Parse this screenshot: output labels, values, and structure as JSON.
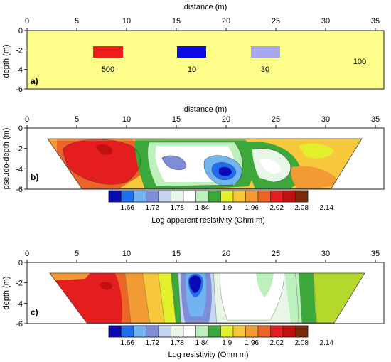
{
  "chart_data": [
    {
      "type": "heatmap",
      "panel_label": "a)",
      "xlabel": "distance (m)",
      "ylabel": "depth (m)",
      "xlim": [
        0,
        36
      ],
      "ylim": [
        -6,
        0
      ],
      "xticks": [
        "0",
        "5",
        "10",
        "15",
        "20",
        "25",
        "30",
        "35"
      ],
      "yticks": [
        "0",
        "-2",
        "-4",
        "-6"
      ],
      "background": {
        "resistivity": "100",
        "color": "#fdfd8a"
      },
      "blocks": [
        {
          "label": "500",
          "x": [
            6.7,
            9.6
          ],
          "y": [
            -2.5,
            -1.5
          ],
          "color": "#ee1c1c"
        },
        {
          "label": "10",
          "x": [
            15.0,
            17.9
          ],
          "y": [
            -2.5,
            -1.5
          ],
          "color": "#0b0be6"
        },
        {
          "label": "30",
          "x": [
            22.5,
            25.3
          ],
          "y": [
            -2.5,
            -1.5
          ],
          "color": "#a8a8f0"
        }
      ],
      "background_label": "100"
    },
    {
      "type": "heatmap",
      "panel_label": "b)",
      "xlabel": "distance (m)",
      "ylabel": "pseudo-depth (m)",
      "xlim": [
        0,
        36
      ],
      "ylim": [
        -6,
        0
      ],
      "xticks": [
        "0",
        "5",
        "10",
        "15",
        "20",
        "25",
        "30",
        "35"
      ],
      "yticks": [
        "0",
        "-2",
        "-4",
        "-6"
      ],
      "colorbar_label": "Log apparent resistivity (Ohm m)",
      "colorbar_ticks": [
        "1.66",
        "1.72",
        "1.78",
        "1.84",
        "1.9",
        "1.96",
        "2.02",
        "2.08",
        "2.14"
      ]
    },
    {
      "type": "heatmap",
      "panel_label": "c)",
      "xlabel": "",
      "ylabel": "depth (m)",
      "xlim": [
        0,
        36
      ],
      "ylim": [
        -6,
        0
      ],
      "xticks": [
        "0",
        "5",
        "10",
        "15",
        "20",
        "25",
        "30",
        "35"
      ],
      "yticks": [
        "0",
        "-2",
        "-4",
        "-6"
      ],
      "colorbar_label": "Log resistivity (Ohm m)",
      "colorbar_ticks": [
        "1.66",
        "1.72",
        "1.78",
        "1.84",
        "1.9",
        "1.96",
        "2.02",
        "2.08",
        "2.14"
      ]
    }
  ],
  "colorscale": [
    "#0a0ab4",
    "#1f6ef0",
    "#72b4f2",
    "#7f8cd6",
    "#c6d6f2",
    "#e8f6e8",
    "#ffffff",
    "#bcf0bc",
    "#3ca83c",
    "#e2f02c",
    "#f8c83c",
    "#f49a34",
    "#ec6426",
    "#e41e1e",
    "#c01010",
    "#7a2a0a"
  ]
}
